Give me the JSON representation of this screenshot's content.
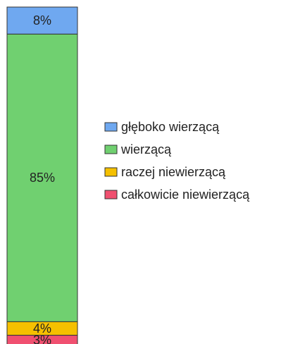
{
  "chart_data": {
    "type": "bar",
    "stacked": true,
    "categories": [
      null
    ],
    "series": [
      {
        "name": "głęboko wierzącą",
        "color": "#6fa8f0",
        "values": [
          8
        ],
        "value_labels": [
          "8%"
        ]
      },
      {
        "name": "wierzącą",
        "color": "#70d070",
        "values": [
          85
        ],
        "value_labels": [
          "85%"
        ]
      },
      {
        "name": "raczej niewierzącą",
        "color": "#f5c000",
        "values": [
          4
        ],
        "value_labels": [
          "4%"
        ]
      },
      {
        "name": "całkowicie niewierzącą",
        "color": "#f05070",
        "values": [
          3
        ],
        "value_labels": [
          "3%"
        ]
      }
    ],
    "legend": "right"
  }
}
